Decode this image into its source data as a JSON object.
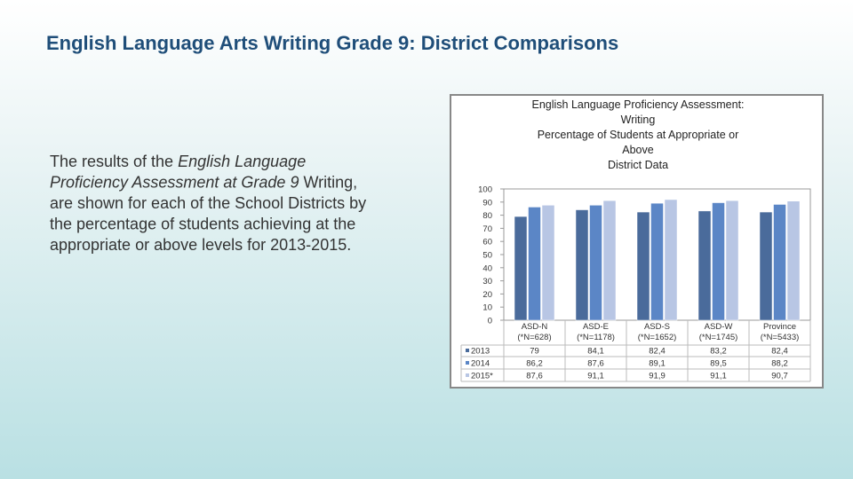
{
  "slide": {
    "title": "English Language Arts Writing Grade 9: District Comparisons",
    "body": [
      [
        {
          "text": "The results of the ",
          "italic": false
        },
        {
          "text": "English Language",
          "italic": true
        }
      ],
      [
        {
          "text": "Proficiency Assessment at Grade 9",
          "italic": true
        },
        {
          "text": " Writing,",
          "italic": false
        }
      ],
      [
        {
          "text": "are shown for each of the School Districts by",
          "italic": false
        }
      ],
      [
        {
          "text": "the percentage of students achieving at the",
          "italic": false
        }
      ],
      [
        {
          "text": "appropriate or above levels for 2013-2015.",
          "italic": false
        }
      ]
    ]
  },
  "chart_data": {
    "type": "bar",
    "title": [
      "English Language Proficiency Assessment:",
      "Writing",
      "Percentage of Students at Appropriate or",
      "Above",
      "District Data"
    ],
    "categories": [
      "ASD-N",
      "ASD-E",
      "ASD-S",
      "ASD-W",
      "Province"
    ],
    "category_sublabels": [
      "(*N=628)",
      "(*N=1178)",
      "(*N=1652)",
      "(*N=1745)",
      "(*N=5433)"
    ],
    "series": [
      {
        "name": "2013",
        "color": "#4a6b9b",
        "values": [
          79,
          84.1,
          82.4,
          83.2,
          82.4
        ],
        "value_labels": [
          "79",
          "84,1",
          "82,4",
          "83,2",
          "82,4"
        ]
      },
      {
        "name": "2014",
        "color": "#5b86c6",
        "values": [
          86.2,
          87.6,
          89.1,
          89.5,
          88.2
        ],
        "value_labels": [
          "86,2",
          "87,6",
          "89,1",
          "89,5",
          "88,2"
        ]
      },
      {
        "name": "2015*",
        "color": "#b8c6e4",
        "values": [
          87.6,
          91.1,
          91.9,
          91.1,
          90.7
        ],
        "value_labels": [
          "87,6",
          "91,1",
          "91,9",
          "91,1",
          "90,7"
        ]
      }
    ],
    "ylim": [
      0,
      100
    ],
    "yticks": [
      0,
      10,
      20,
      30,
      40,
      50,
      60,
      70,
      80,
      90,
      100
    ],
    "grid": false
  }
}
